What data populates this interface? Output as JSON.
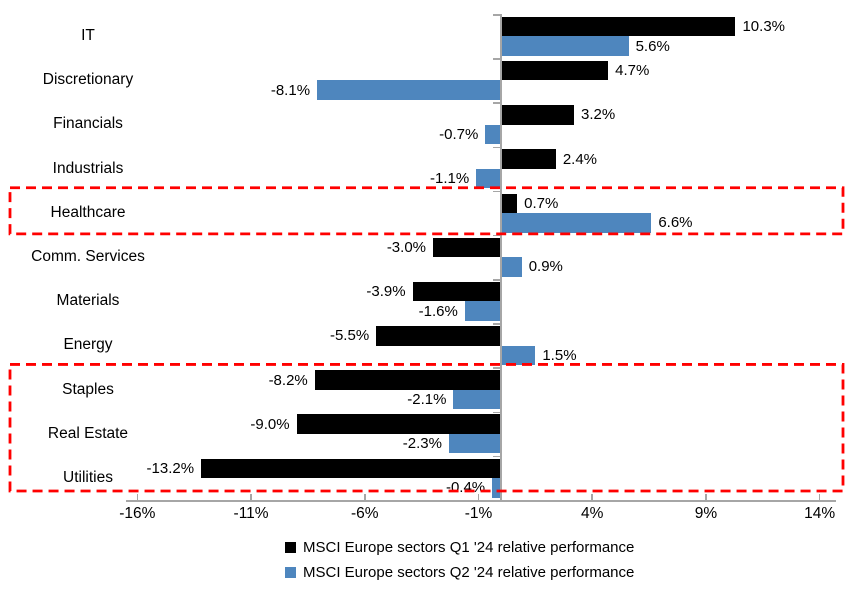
{
  "chart_data": {
    "type": "bar",
    "orientation": "horizontal",
    "title": "",
    "categories": [
      "IT",
      "Discretionary",
      "Financials",
      "Industrials",
      "Healthcare",
      "Comm. Services",
      "Materials",
      "Energy",
      "Staples",
      "Real Estate",
      "Utilities"
    ],
    "series": [
      {
        "name": "MSCI Europe sectors Q1 '24 relative performance",
        "color": "#000000",
        "values": [
          10.3,
          4.7,
          3.2,
          2.4,
          0.7,
          -3.0,
          -3.9,
          -5.5,
          -8.2,
          -9.0,
          -13.2
        ]
      },
      {
        "name": "MSCI Europe sectors Q2 '24 relative performance",
        "color": "#4E86BE",
        "values": [
          5.6,
          -8.1,
          -0.7,
          -1.1,
          6.6,
          0.9,
          -1.6,
          1.5,
          -2.1,
          -2.3,
          -0.4
        ]
      }
    ],
    "x_ticks": [
      {
        "label": "-16%",
        "value": -16
      },
      {
        "label": "-11%",
        "value": -11
      },
      {
        "label": "-6%",
        "value": -6
      },
      {
        "label": "-1%",
        "value": -1
      },
      {
        "label": "4%",
        "value": 4
      },
      {
        "label": "9%",
        "value": 9
      },
      {
        "label": "14%",
        "value": 14
      }
    ],
    "xlim": [
      -16.5,
      14.72
    ],
    "grid": false,
    "data_labels": true,
    "value_label_format": "0.0%",
    "legend_position": "bottom",
    "axis_color": "#A6A6A6",
    "highlight_boxes": [
      {
        "color": "#FF0000",
        "start_category": "Healthcare",
        "end_category": "Healthcare"
      },
      {
        "color": "#FF0000",
        "start_category": "Staples",
        "end_category": "Utilities"
      }
    ]
  }
}
